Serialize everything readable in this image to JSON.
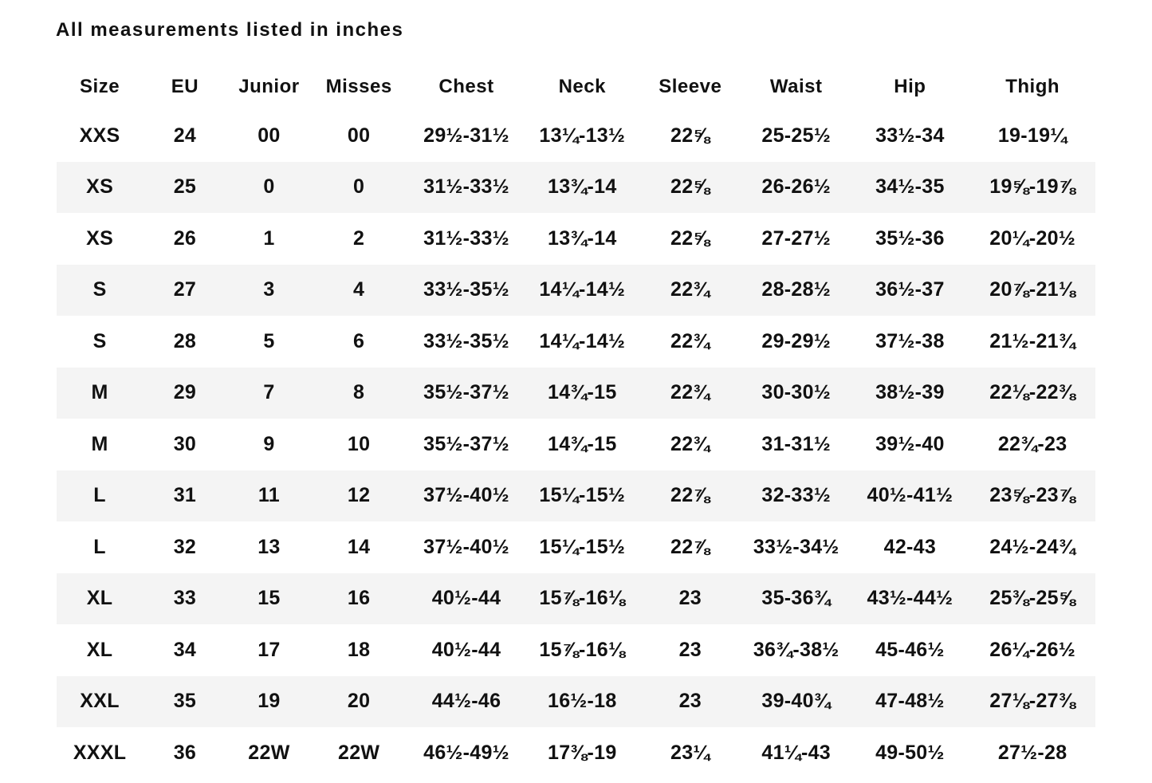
{
  "page": {
    "title": "All measurements listed in inches"
  },
  "colors": {
    "background": "#ffffff",
    "stripe": "#f4f4f4",
    "text": "#111111"
  },
  "table": {
    "columns": [
      "Size",
      "EU",
      "Junior",
      "Misses",
      "Chest",
      "Neck",
      "Sleeve",
      "Waist",
      "Hip",
      "Thigh"
    ],
    "rows": [
      [
        "XXS",
        "24",
        "00",
        "00",
        "29½-31½",
        "13¼-13½",
        "22⅝",
        "25-25½",
        "33½-34",
        "19-19¼"
      ],
      [
        "XS",
        "25",
        "0",
        "0",
        "31½-33½",
        "13¾-14",
        "22⅝",
        "26-26½",
        "34½-35",
        "19⅝-19⅞"
      ],
      [
        "XS",
        "26",
        "1",
        "2",
        "31½-33½",
        "13¾-14",
        "22⅝",
        "27-27½",
        "35½-36",
        "20¼-20½"
      ],
      [
        "S",
        "27",
        "3",
        "4",
        "33½-35½",
        "14¼-14½",
        "22¾",
        "28-28½",
        "36½-37",
        "20⅞-21⅛"
      ],
      [
        "S",
        "28",
        "5",
        "6",
        "33½-35½",
        "14¼-14½",
        "22¾",
        "29-29½",
        "37½-38",
        "21½-21¾"
      ],
      [
        "M",
        "29",
        "7",
        "8",
        "35½-37½",
        "14¾-15",
        "22¾",
        "30-30½",
        "38½-39",
        "22⅛-22⅜"
      ],
      [
        "M",
        "30",
        "9",
        "10",
        "35½-37½",
        "14¾-15",
        "22¾",
        "31-31½",
        "39½-40",
        "22¾-23"
      ],
      [
        "L",
        "31",
        "11",
        "12",
        "37½-40½",
        "15¼-15½",
        "22⅞",
        "32-33½",
        "40½-41½",
        "23⅝-23⅞"
      ],
      [
        "L",
        "32",
        "13",
        "14",
        "37½-40½",
        "15¼-15½",
        "22⅞",
        "33½-34½",
        "42-43",
        "24½-24¾"
      ],
      [
        "XL",
        "33",
        "15",
        "16",
        "40½-44",
        "15⅞-16⅛",
        "23",
        "35-36¾",
        "43½-44½",
        "25⅜-25⅝"
      ],
      [
        "XL",
        "34",
        "17",
        "18",
        "40½-44",
        "15⅞-16⅛",
        "23",
        "36¾-38½",
        "45-46½",
        "26¼-26½"
      ],
      [
        "XXL",
        "35",
        "19",
        "20",
        "44½-46",
        "16½-18",
        "23",
        "39-40¾",
        "47-48½",
        "27⅛-27⅜"
      ],
      [
        "XXXL",
        "36",
        "22W",
        "22W",
        "46½-49½",
        "17⅜-19",
        "23¼",
        "41¼-43",
        "49-50½",
        "27½-28"
      ]
    ]
  }
}
